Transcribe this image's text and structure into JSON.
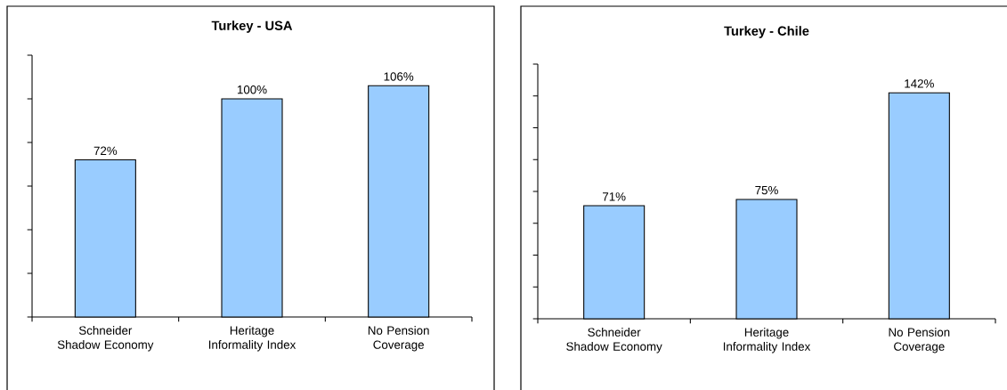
{
  "chart_data": [
    {
      "type": "bar",
      "title": "Turkey - USA",
      "categories": [
        "Schneider Shadow Economy",
        "Heritage Informality Index",
        "No Pension Coverage"
      ],
      "values": [
        72,
        100,
        106
      ],
      "value_labels": [
        "72%",
        "100%",
        "106%"
      ],
      "color": "#99ccff",
      "ylim": [
        0,
        120
      ],
      "yticks": [
        {
          "value": 0,
          "label": null
        },
        {
          "value": 20,
          "label": null
        },
        {
          "value": 40,
          "label": null
        },
        {
          "value": 60,
          "label": null
        },
        {
          "value": 80,
          "label": null
        },
        {
          "value": 100,
          "label": null
        },
        {
          "value": 120,
          "label": null
        }
      ],
      "tick_labels": "x"
    },
    {
      "type": "bar",
      "title": "Turkey - Chile",
      "categories": [
        "Schneider Shadow Economy",
        "Heritage Informality Index",
        "No Pension Coverage"
      ],
      "values": [
        71,
        75,
        142
      ],
      "value_labels": [
        "71%",
        "75%",
        "142%"
      ],
      "color": "#99ccff",
      "ylim": [
        0,
        160
      ],
      "yticks": [
        {
          "value": 0,
          "label": null
        },
        {
          "value": 20,
          "label": null
        },
        {
          "value": 40,
          "label": null
        },
        {
          "value": 60,
          "label": null
        },
        {
          "value": 80,
          "label": null
        },
        {
          "value": 100,
          "label": null
        },
        {
          "value": 120,
          "label": null
        },
        {
          "value": 140,
          "label": null
        },
        {
          "value": 160,
          "label": null
        }
      ],
      "tick_labels": "x"
    }
  ]
}
